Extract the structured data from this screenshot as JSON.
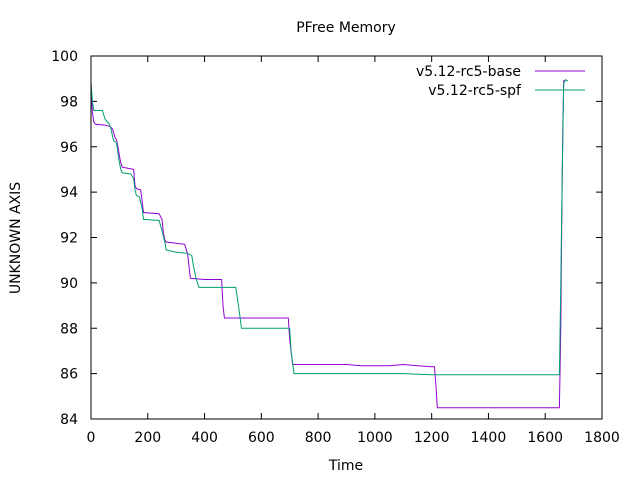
{
  "chart_data": {
    "type": "line",
    "title": "PFree Memory",
    "xlabel": "Time",
    "ylabel": "UNKNOWN AXIS",
    "xlim": [
      0,
      1800
    ],
    "ylim": [
      84,
      100
    ],
    "xticks": [
      0,
      200,
      400,
      600,
      800,
      1000,
      1200,
      1400,
      1600,
      1800
    ],
    "yticks": [
      84,
      86,
      88,
      90,
      92,
      94,
      96,
      98,
      100
    ],
    "grid": false,
    "legend_position": "top-right",
    "series": [
      {
        "name": "v5.12-rc5-base",
        "color": "#9400d3",
        "points": [
          [
            0,
            98.8
          ],
          [
            5,
            97.5
          ],
          [
            10,
            97.1
          ],
          [
            15,
            97.0
          ],
          [
            50,
            96.95
          ],
          [
            65,
            96.9
          ],
          [
            75,
            96.8
          ],
          [
            80,
            96.6
          ],
          [
            85,
            96.4
          ],
          [
            90,
            96.3
          ],
          [
            95,
            96.0
          ],
          [
            100,
            95.6
          ],
          [
            105,
            95.3
          ],
          [
            110,
            95.1
          ],
          [
            130,
            95.05
          ],
          [
            150,
            95.0
          ],
          [
            155,
            94.3
          ],
          [
            160,
            94.15
          ],
          [
            175,
            94.1
          ],
          [
            180,
            93.6
          ],
          [
            185,
            93.1
          ],
          [
            240,
            93.05
          ],
          [
            250,
            92.8
          ],
          [
            255,
            92.2
          ],
          [
            260,
            91.9
          ],
          [
            265,
            91.8
          ],
          [
            300,
            91.75
          ],
          [
            330,
            91.7
          ],
          [
            340,
            91.3
          ],
          [
            350,
            90.2
          ],
          [
            400,
            90.15
          ],
          [
            460,
            90.15
          ],
          [
            465,
            89.0
          ],
          [
            470,
            88.45
          ],
          [
            520,
            88.45
          ],
          [
            600,
            88.45
          ],
          [
            695,
            88.45
          ],
          [
            700,
            87.5
          ],
          [
            710,
            86.4
          ],
          [
            800,
            86.4
          ],
          [
            900,
            86.4
          ],
          [
            950,
            86.35
          ],
          [
            1000,
            86.35
          ],
          [
            1050,
            86.35
          ],
          [
            1100,
            86.4
          ],
          [
            1150,
            86.35
          ],
          [
            1200,
            86.3
          ],
          [
            1210,
            86.3
          ],
          [
            1215,
            85.5
          ],
          [
            1220,
            84.5
          ],
          [
            1300,
            84.5
          ],
          [
            1400,
            84.5
          ],
          [
            1500,
            84.5
          ],
          [
            1600,
            84.5
          ],
          [
            1650,
            84.5
          ],
          [
            1655,
            88.0
          ],
          [
            1658,
            92.5
          ],
          [
            1662,
            96.8
          ],
          [
            1665,
            98.9
          ],
          [
            1672,
            98.95
          ]
        ]
      },
      {
        "name": "v5.12-rc5-spf",
        "color": "#009e73",
        "points": [
          [
            0,
            98.8
          ],
          [
            5,
            98.0
          ],
          [
            10,
            97.6
          ],
          [
            40,
            97.6
          ],
          [
            50,
            97.2
          ],
          [
            65,
            97.0
          ],
          [
            70,
            96.8
          ],
          [
            75,
            96.5
          ],
          [
            80,
            96.25
          ],
          [
            90,
            96.2
          ],
          [
            95,
            95.7
          ],
          [
            100,
            95.3
          ],
          [
            105,
            95.0
          ],
          [
            110,
            94.85
          ],
          [
            140,
            94.8
          ],
          [
            150,
            94.6
          ],
          [
            155,
            94.1
          ],
          [
            160,
            93.85
          ],
          [
            170,
            93.8
          ],
          [
            180,
            93.3
          ],
          [
            185,
            92.8
          ],
          [
            240,
            92.75
          ],
          [
            250,
            92.3
          ],
          [
            260,
            91.8
          ],
          [
            265,
            91.45
          ],
          [
            300,
            91.35
          ],
          [
            340,
            91.3
          ],
          [
            355,
            91.2
          ],
          [
            360,
            90.8
          ],
          [
            370,
            90.2
          ],
          [
            380,
            89.8
          ],
          [
            420,
            89.8
          ],
          [
            510,
            89.8
          ],
          [
            520,
            88.95
          ],
          [
            530,
            88.0
          ],
          [
            600,
            88.0
          ],
          [
            700,
            88.0
          ],
          [
            705,
            87.0
          ],
          [
            715,
            86.0
          ],
          [
            800,
            86.0
          ],
          [
            900,
            86.0
          ],
          [
            1000,
            86.0
          ],
          [
            1100,
            86.0
          ],
          [
            1200,
            85.95
          ],
          [
            1300,
            85.95
          ],
          [
            1400,
            85.95
          ],
          [
            1500,
            85.95
          ],
          [
            1600,
            85.95
          ],
          [
            1650,
            85.95
          ],
          [
            1655,
            90.0
          ],
          [
            1660,
            95.0
          ],
          [
            1665,
            98.8
          ],
          [
            1672,
            98.95
          ],
          [
            1680,
            98.9
          ]
        ]
      }
    ]
  }
}
